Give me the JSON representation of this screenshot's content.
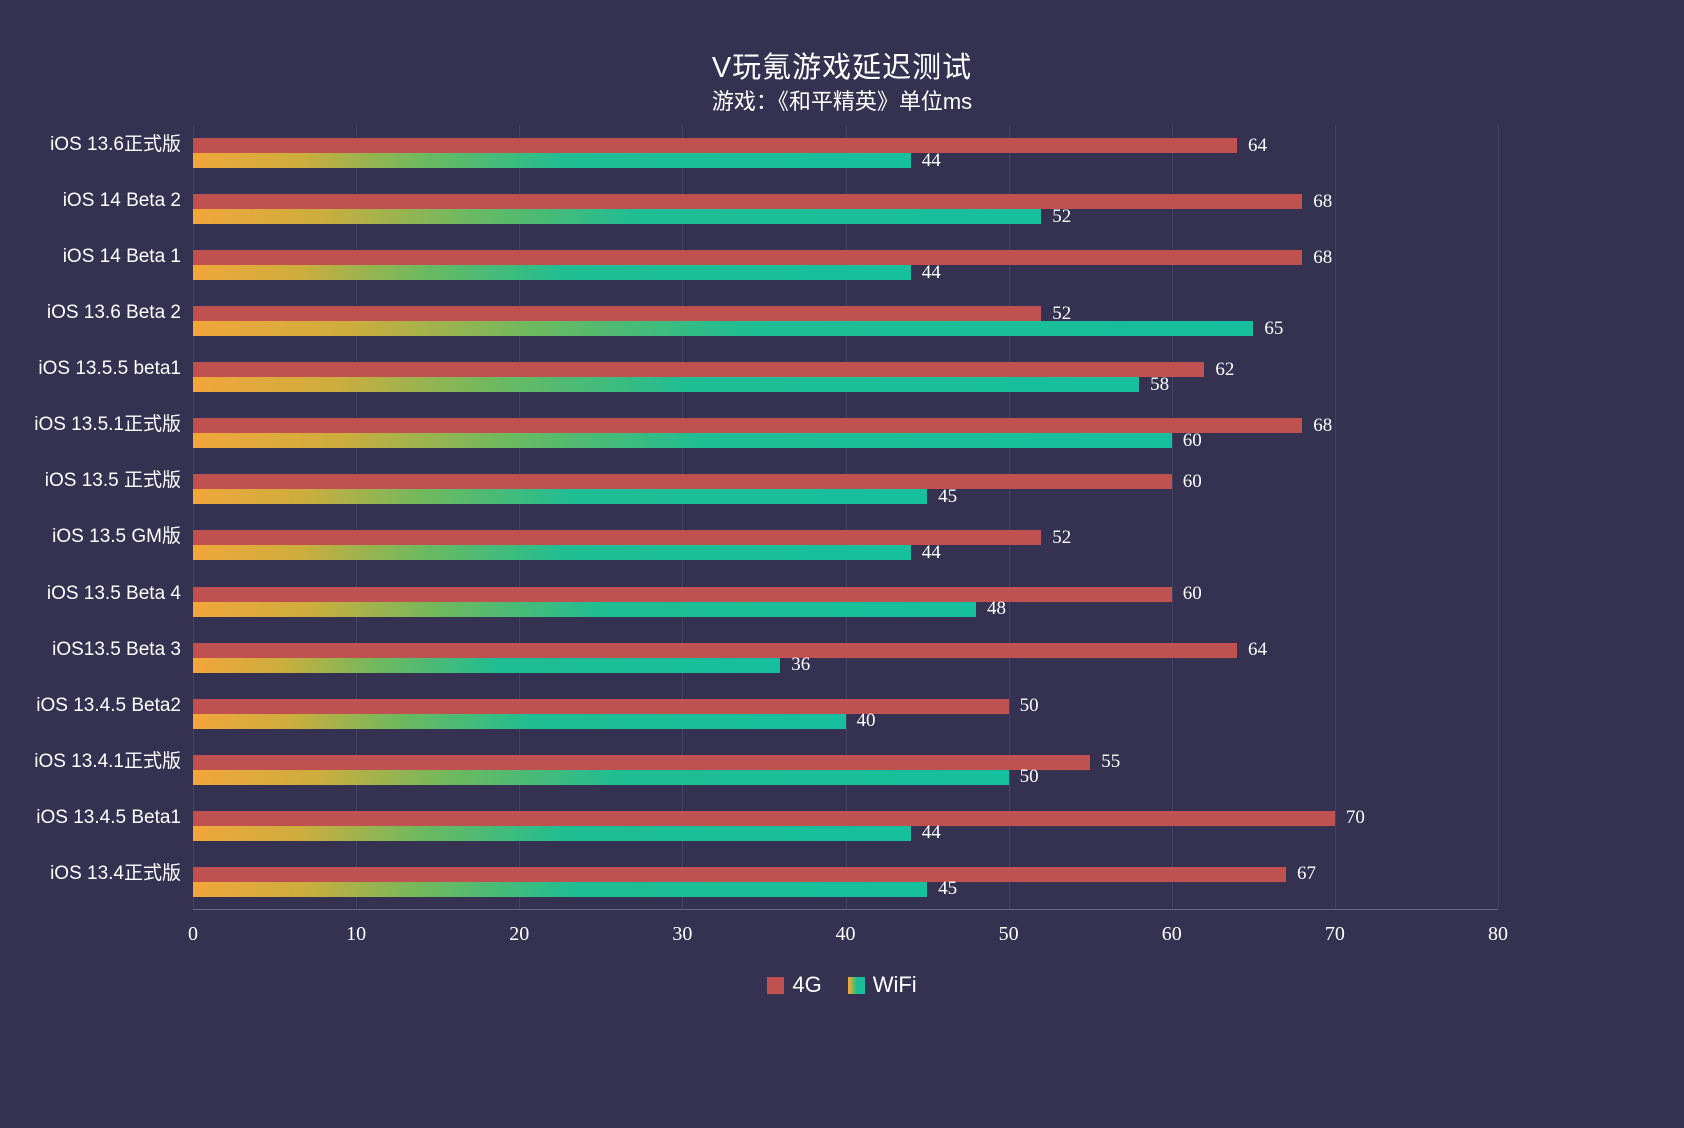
{
  "chart_data": {
    "type": "bar",
    "orientation": "horizontal",
    "title": "V玩氪游戏延迟测试",
    "subtitle": "游戏：《和平精英》单位ms",
    "categories": [
      "iOS 13.6正式版",
      "iOS 14 Beta 2",
      "iOS 14 Beta 1",
      "iOS 13.6 Beta 2",
      "iOS 13.5.5 beta1",
      "iOS 13.5.1正式版",
      "iOS 13.5 正式版",
      "iOS 13.5 GM版",
      "iOS 13.5 Beta 4",
      "iOS13.5 Beta 3",
      "iOS 13.4.5 Beta2",
      "iOS 13.4.1正式版",
      "iOS 13.4.5 Beta1",
      "iOS 13.4正式版"
    ],
    "series": [
      {
        "name": "4G",
        "color": "#bf5150",
        "values": [
          64,
          68,
          68,
          52,
          62,
          68,
          60,
          52,
          60,
          64,
          50,
          55,
          70,
          67
        ]
      },
      {
        "name": "WiFi",
        "gradient": [
          "#f2a63b",
          "#16bf9e"
        ],
        "values": [
          44,
          52,
          44,
          65,
          58,
          60,
          45,
          44,
          48,
          36,
          40,
          50,
          44,
          45
        ]
      }
    ],
    "xlabel": "",
    "ylabel": "",
    "xlim": [
      0,
      80
    ],
    "xticks": [
      0,
      10,
      20,
      30,
      40,
      50,
      60,
      70,
      80
    ],
    "grid": true,
    "legend_position": "bottom",
    "unit": "ms"
  },
  "colors": {
    "background": "#353150",
    "gridline": "#454163",
    "axis_line": "#6b6788",
    "bar_4g": "#bf5150",
    "bar_wifi_start": "#f2a63b",
    "bar_wifi_end": "#16bf9e",
    "text": "#ffffff"
  }
}
